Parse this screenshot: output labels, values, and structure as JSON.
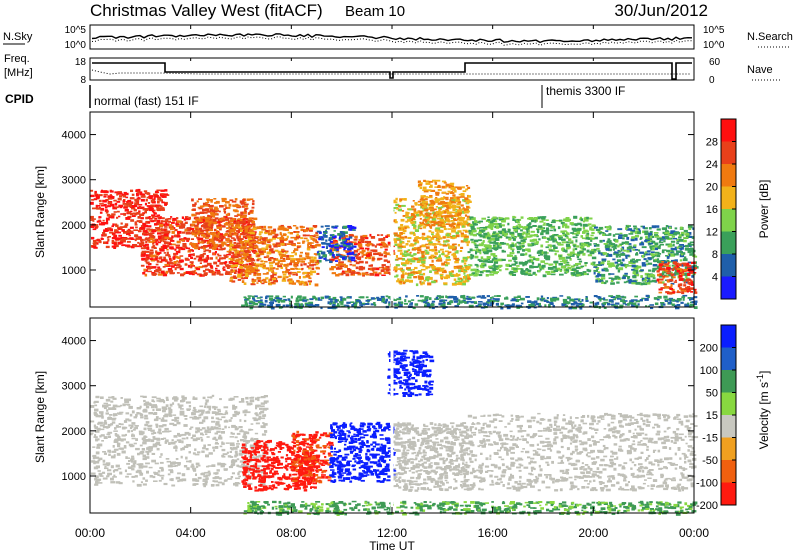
{
  "header": {
    "station": "Christmas Valley West (fitACF)",
    "beam": "Beam 10",
    "date": "30/Jun/2012"
  },
  "strip_panels": {
    "noise": {
      "left_label": "N.Sky",
      "left_ticks": [
        "10^5",
        "10^0"
      ],
      "right_label": "N.Search",
      "right_ticks": [
        "10^5",
        "10^0"
      ]
    },
    "freq": {
      "left_label_1": "Freq.",
      "left_label_2": "[MHz]",
      "left_ticks": [
        "18",
        "8"
      ],
      "right_label": "Nave",
      "right_ticks": [
        "60",
        "0"
      ]
    },
    "cpid": {
      "label": "CPID",
      "programs": [
        "normal (fast) 151 IF",
        "themis 3300 IF"
      ]
    }
  },
  "x_axis": {
    "label": "Time UT",
    "ticks": [
      "00:00",
      "04:00",
      "08:00",
      "12:00",
      "16:00",
      "20:00",
      "00:00"
    ]
  },
  "colors": {
    "power": [
      "#1a1aff",
      "#1f5faa",
      "#3aa05a",
      "#7fd34a",
      "#f2b21a",
      "#f07a10",
      "#e8401a",
      "#ff1010"
    ],
    "velocity": [
      "#0a1eff",
      "#1f5fc8",
      "#3e9a55",
      "#88d840",
      "#c8c8c0",
      "#f0a020",
      "#f06010",
      "#ff1a10"
    ],
    "velocity_ground": "#c0c0b8"
  },
  "chart_data": [
    {
      "type": "heatmap",
      "title": "",
      "xlabel": "Time UT",
      "ylabel": "Slant Range [km]",
      "xlim": [
        0,
        24
      ],
      "ylim": [
        180,
        4500
      ],
      "yticks": [
        1000,
        2000,
        3000,
        4000
      ],
      "colorbar": {
        "label": "Power [dB]",
        "ticks": [
          4,
          8,
          12,
          16,
          20,
          24,
          28
        ],
        "range": [
          0,
          32
        ]
      },
      "regions": [
        {
          "t0": 0.0,
          "t1": 3.0,
          "r0": 1500,
          "r1": 2800,
          "value": 28
        },
        {
          "t0": 2.0,
          "t1": 6.5,
          "r0": 900,
          "r1": 2200,
          "value": 27
        },
        {
          "t0": 4.0,
          "t1": 6.5,
          "r0": 1500,
          "r1": 2600,
          "value": 24
        },
        {
          "t0": 5.5,
          "t1": 9.0,
          "r0": 700,
          "r1": 2000,
          "value": 22
        },
        {
          "t0": 9.5,
          "t1": 12.0,
          "r0": 900,
          "r1": 1800,
          "value": 25
        },
        {
          "t0": 9.0,
          "t1": 10.5,
          "r0": 1200,
          "r1": 2000,
          "value": 6
        },
        {
          "t0": 12.0,
          "t1": 15.0,
          "r0": 700,
          "r1": 2600,
          "value": 18
        },
        {
          "t0": 13.0,
          "t1": 15.0,
          "r0": 2000,
          "r1": 3000,
          "value": 20
        },
        {
          "t0": 15.0,
          "t1": 20.0,
          "r0": 900,
          "r1": 2200,
          "value": 12
        },
        {
          "t0": 20.0,
          "t1": 24.0,
          "r0": 700,
          "r1": 2000,
          "value": 10
        },
        {
          "t0": 22.5,
          "t1": 24.0,
          "r0": 500,
          "r1": 1200,
          "value": 26
        },
        {
          "t0": 6.0,
          "t1": 24.0,
          "r0": 180,
          "r1": 450,
          "value": 8
        }
      ]
    },
    {
      "type": "heatmap",
      "title": "",
      "xlabel": "Time UT",
      "ylabel": "Slant Range [km]",
      "xlim": [
        0,
        24
      ],
      "ylim": [
        180,
        4500
      ],
      "yticks": [
        1000,
        2000,
        3000,
        4000
      ],
      "colorbar": {
        "label": "Velocity [m s^-1]",
        "ticks": [
          200,
          100,
          50,
          15,
          -15,
          -50,
          -100,
          -200
        ]
      },
      "regions": [
        {
          "t0": 0.0,
          "t1": 7.0,
          "r0": 800,
          "r1": 2800,
          "value": 0,
          "ground": true
        },
        {
          "t0": 6.0,
          "t1": 9.0,
          "r0": 700,
          "r1": 1800,
          "value": -200
        },
        {
          "t0": 8.0,
          "t1": 9.5,
          "r0": 900,
          "r1": 2000,
          "value": -150
        },
        {
          "t0": 9.5,
          "t1": 12.0,
          "r0": 900,
          "r1": 2200,
          "value": 200
        },
        {
          "t0": 11.8,
          "t1": 13.5,
          "r0": 2800,
          "r1": 3800,
          "value": 180
        },
        {
          "t0": 12.0,
          "t1": 15.0,
          "r0": 700,
          "r1": 2200,
          "value": 0,
          "ground": true
        },
        {
          "t0": 15.0,
          "t1": 24.0,
          "r0": 700,
          "r1": 2400,
          "value": 0,
          "ground": true
        },
        {
          "t0": 6.0,
          "t1": 24.0,
          "r0": 180,
          "r1": 450,
          "value": 40
        }
      ]
    }
  ]
}
